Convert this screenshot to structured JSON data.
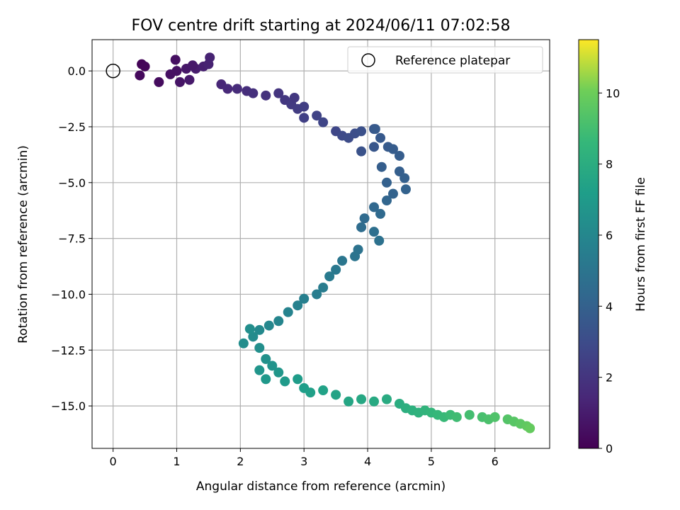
{
  "chart_data": {
    "type": "scatter",
    "title": "FOV centre drift starting at 2024/06/11 07:02:58",
    "xlabel": "Angular distance from reference (arcmin)",
    "ylabel": "Rotation from reference (arcmin)",
    "xlim": [
      -0.33,
      6.86
    ],
    "ylim": [
      -16.9,
      1.4
    ],
    "xticks": [
      "0",
      "1",
      "2",
      "3",
      "4",
      "5",
      "6"
    ],
    "yticks": [
      "0.0",
      "−2.5",
      "−5.0",
      "−7.5",
      "−10.0",
      "−12.5",
      "−15.0"
    ],
    "grid": true,
    "legend": {
      "position": "top-right",
      "entries": [
        "Reference platepar"
      ]
    },
    "reference_point": {
      "x": 0,
      "y": 0
    },
    "colorbar": {
      "label": "Hours from first FF file",
      "range": [
        0,
        11.5
      ],
      "ticks": [
        "0",
        "2",
        "4",
        "6",
        "8",
        "10"
      ],
      "colormap": "viridis"
    },
    "track": [
      [
        0.45,
        0.3,
        0.1
      ],
      [
        0.5,
        0.2,
        0.2
      ],
      [
        0.42,
        -0.2,
        0.3
      ],
      [
        0.72,
        -0.5,
        0.4
      ],
      [
        0.98,
        0.5,
        0.5
      ],
      [
        1.0,
        0.0,
        0.6
      ],
      [
        1.05,
        -0.5,
        0.7
      ],
      [
        1.15,
        0.1,
        0.8
      ],
      [
        1.2,
        -0.4,
        0.9
      ],
      [
        1.3,
        0.1,
        1.0
      ],
      [
        1.42,
        0.2,
        1.1
      ],
      [
        1.5,
        0.3,
        1.2
      ],
      [
        1.52,
        0.6,
        1.25
      ],
      [
        0.9,
        -0.15,
        0.55
      ],
      [
        1.25,
        0.25,
        0.85
      ],
      [
        1.7,
        -0.6,
        1.4
      ],
      [
        1.8,
        -0.8,
        1.5
      ],
      [
        1.95,
        -0.8,
        1.6
      ],
      [
        2.1,
        -0.9,
        1.7
      ],
      [
        2.2,
        -1.0,
        1.8
      ],
      [
        2.4,
        -1.1,
        1.9
      ],
      [
        2.6,
        -1.0,
        2.0
      ],
      [
        2.7,
        -1.3,
        2.1
      ],
      [
        2.8,
        -1.5,
        2.2
      ],
      [
        2.9,
        -1.7,
        2.3
      ],
      [
        3.0,
        -1.6,
        2.4
      ],
      [
        3.0,
        -2.1,
        2.5
      ],
      [
        2.85,
        -1.2,
        2.15
      ],
      [
        3.2,
        -2.0,
        2.6
      ],
      [
        3.3,
        -2.3,
        2.7
      ],
      [
        3.5,
        -2.7,
        2.8
      ],
      [
        3.6,
        -2.9,
        2.9
      ],
      [
        3.7,
        -3.0,
        3.0
      ],
      [
        3.8,
        -2.8,
        3.1
      ],
      [
        3.9,
        -2.7,
        3.2
      ],
      [
        3.9,
        -3.6,
        3.3
      ],
      [
        4.1,
        -2.6,
        3.4
      ],
      [
        4.1,
        -3.4,
        3.5
      ],
      [
        4.2,
        -3.0,
        3.6
      ],
      [
        4.12,
        -2.6,
        3.65
      ],
      [
        4.32,
        -3.4,
        3.7
      ],
      [
        4.4,
        -3.5,
        3.75
      ],
      [
        4.5,
        -3.8,
        3.8
      ],
      [
        4.22,
        -4.3,
        3.85
      ],
      [
        4.5,
        -4.5,
        3.9
      ],
      [
        4.58,
        -4.8,
        3.95
      ],
      [
        4.3,
        -5.0,
        4.0
      ],
      [
        4.6,
        -5.3,
        4.05
      ],
      [
        4.4,
        -5.5,
        4.1
      ],
      [
        4.3,
        -5.8,
        4.2
      ],
      [
        4.1,
        -6.1,
        4.3
      ],
      [
        4.2,
        -6.4,
        4.4
      ],
      [
        3.95,
        -6.6,
        4.5
      ],
      [
        3.9,
        -7.0,
        4.6
      ],
      [
        4.1,
        -7.2,
        4.7
      ],
      [
        4.18,
        -7.6,
        4.8
      ],
      [
        3.85,
        -8.0,
        4.9
      ],
      [
        3.8,
        -8.3,
        5.0
      ],
      [
        3.6,
        -8.5,
        5.1
      ],
      [
        3.5,
        -8.9,
        5.2
      ],
      [
        3.4,
        -9.2,
        5.3
      ],
      [
        3.3,
        -9.7,
        5.4
      ],
      [
        3.2,
        -10.0,
        5.5
      ],
      [
        3.0,
        -10.2,
        5.6
      ],
      [
        2.9,
        -10.5,
        5.7
      ],
      [
        2.75,
        -10.8,
        5.8
      ],
      [
        2.6,
        -11.2,
        5.9
      ],
      [
        2.45,
        -11.4,
        6.0
      ],
      [
        2.3,
        -11.6,
        6.1
      ],
      [
        2.2,
        -11.9,
        6.2
      ],
      [
        2.05,
        -12.2,
        6.3
      ],
      [
        2.15,
        -11.55,
        6.35
      ],
      [
        2.3,
        -12.4,
        6.4
      ],
      [
        2.4,
        -12.9,
        6.5
      ],
      [
        2.5,
        -13.2,
        6.6
      ],
      [
        2.3,
        -13.4,
        6.7
      ],
      [
        2.6,
        -13.5,
        6.8
      ],
      [
        2.4,
        -13.8,
        6.9
      ],
      [
        2.7,
        -13.9,
        7.0
      ],
      [
        2.9,
        -13.8,
        7.1
      ],
      [
        3.0,
        -14.2,
        7.2
      ],
      [
        3.1,
        -14.4,
        7.3
      ],
      [
        3.3,
        -14.3,
        7.4
      ],
      [
        3.5,
        -14.5,
        7.5
      ],
      [
        3.7,
        -14.8,
        7.6
      ],
      [
        3.9,
        -14.7,
        7.7
      ],
      [
        4.1,
        -14.8,
        7.8
      ],
      [
        4.3,
        -14.7,
        7.9
      ],
      [
        4.5,
        -14.9,
        8.0
      ],
      [
        4.6,
        -15.1,
        8.1
      ],
      [
        4.7,
        -15.2,
        8.2
      ],
      [
        4.8,
        -15.3,
        8.3
      ],
      [
        4.9,
        -15.2,
        8.4
      ],
      [
        5.0,
        -15.3,
        8.5
      ],
      [
        5.1,
        -15.4,
        8.6
      ],
      [
        5.2,
        -15.5,
        8.7
      ],
      [
        5.3,
        -15.4,
        8.8
      ],
      [
        5.4,
        -15.5,
        8.9
      ],
      [
        5.6,
        -15.4,
        9.0
      ],
      [
        5.8,
        -15.5,
        9.1
      ],
      [
        5.9,
        -15.6,
        9.2
      ],
      [
        6.0,
        -15.5,
        9.3
      ],
      [
        6.2,
        -15.6,
        9.4
      ],
      [
        6.3,
        -15.7,
        9.5
      ],
      [
        6.4,
        -15.8,
        9.6
      ],
      [
        6.5,
        -15.9,
        9.7
      ],
      [
        6.55,
        -16.0,
        9.8
      ]
    ]
  },
  "colors": {
    "axes": "#000000",
    "grid": "#b0b0b0",
    "background": "#ffffff"
  }
}
